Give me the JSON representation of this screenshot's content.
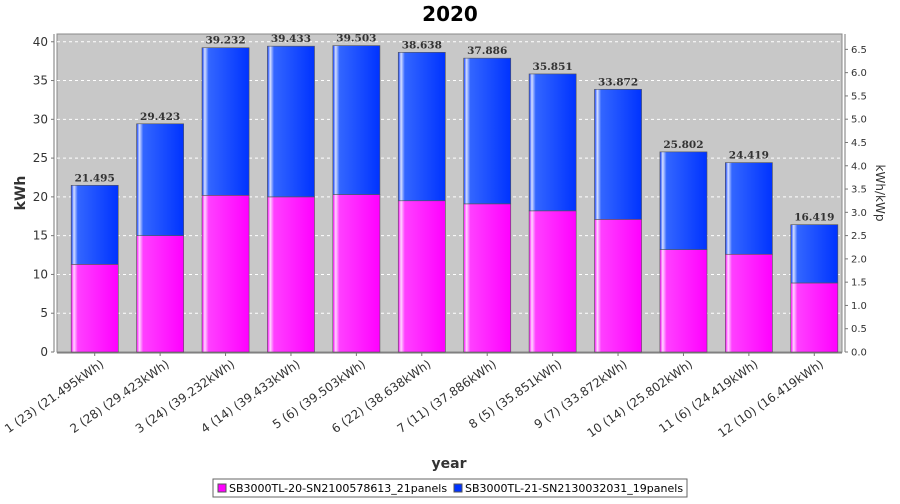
{
  "chart_data": {
    "type": "bar",
    "stacked": true,
    "title": "2020",
    "xlabel": "year",
    "ylabel": "kWh",
    "y2label": "kWh/kWp",
    "ylim": [
      0,
      41
    ],
    "y2lim": [
      0,
      6.83
    ],
    "yticks": [
      0,
      5,
      10,
      15,
      20,
      25,
      30,
      35,
      40
    ],
    "y2ticks": [
      0.0,
      0.5,
      1.0,
      1.5,
      2.0,
      2.5,
      3.0,
      3.5,
      4.0,
      4.5,
      5.0,
      5.5,
      6.0,
      6.5
    ],
    "grid": true,
    "legend_position": "bottom",
    "categories": [
      "1 (23)  (21.495kWh)",
      "2 (28)  (29.423kWh)",
      "3 (24)  (39.232kWh)",
      "4 (14)  (39.433kWh)",
      "5 (6)  (39.503kWh)",
      "6 (22)  (38.638kWh)",
      "7 (11)  (37.886kWh)",
      "8 (5)  (35.851kWh)",
      "9 (7)  (33.872kWh)",
      "10 (14)  (25.802kWh)",
      "11 (6)  (24.419kWh)",
      "12 (10)  (16.419kWh)"
    ],
    "series": [
      {
        "name": "SB3000TL-20-SN2100578613_21panels",
        "color": "#ff00ff",
        "values": [
          11.3,
          15.0,
          20.2,
          20.0,
          20.3,
          19.5,
          19.1,
          18.2,
          17.1,
          13.2,
          12.6,
          8.9
        ]
      },
      {
        "name": "SB3000TL-21-SN2130032031_19panels",
        "color": "#0033ff",
        "values": [
          10.195,
          14.423,
          19.032,
          19.433,
          19.203,
          19.138,
          18.786,
          17.651,
          16.772,
          12.602,
          11.819,
          7.519
        ]
      }
    ],
    "totals": [
      "21.495",
      "29.423",
      "39.232",
      "39.433",
      "39.503",
      "38.638",
      "37.886",
      "35.851",
      "33.872",
      "25.802",
      "24.419",
      "16.419"
    ]
  }
}
